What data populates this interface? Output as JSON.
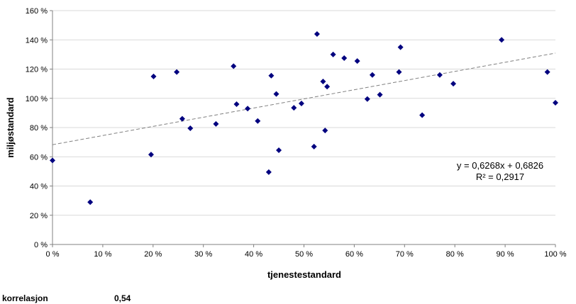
{
  "chart_data": {
    "type": "scatter",
    "xlabel": "tjenestestandard",
    "ylabel": "miljøstandard",
    "xlim": [
      0,
      1.0
    ],
    "ylim": [
      0,
      1.6
    ],
    "x_ticks": [
      "0 %",
      "10 %",
      "20 %",
      "30 %",
      "40 %",
      "50 %",
      "60 %",
      "70 %",
      "80 %",
      "90 %",
      "100 %"
    ],
    "y_ticks": [
      "0 %",
      "20 %",
      "40 %",
      "60 %",
      "80 %",
      "100 %",
      "120 %",
      "140 %",
      "160 %"
    ],
    "grid": "horizontal",
    "marker_color": "#00007f",
    "trendline": {
      "slope": 0.6268,
      "intercept": 0.6826,
      "equation": "y = 0,6268x + 0,6826",
      "r_squared": "R² = 0,2917"
    },
    "points": [
      {
        "x": 0.0,
        "y": 0.575
      },
      {
        "x": 0.075,
        "y": 0.29
      },
      {
        "x": 0.196,
        "y": 0.615
      },
      {
        "x": 0.201,
        "y": 1.15
      },
      {
        "x": 0.247,
        "y": 1.18
      },
      {
        "x": 0.258,
        "y": 0.86
      },
      {
        "x": 0.274,
        "y": 0.795
      },
      {
        "x": 0.325,
        "y": 0.825
      },
      {
        "x": 0.36,
        "y": 1.22
      },
      {
        "x": 0.366,
        "y": 0.96
      },
      {
        "x": 0.388,
        "y": 0.93
      },
      {
        "x": 0.408,
        "y": 0.845
      },
      {
        "x": 0.43,
        "y": 0.495
      },
      {
        "x": 0.435,
        "y": 1.155
      },
      {
        "x": 0.445,
        "y": 1.03
      },
      {
        "x": 0.45,
        "y": 0.645
      },
      {
        "x": 0.48,
        "y": 0.935
      },
      {
        "x": 0.495,
        "y": 0.965
      },
      {
        "x": 0.52,
        "y": 0.67
      },
      {
        "x": 0.526,
        "y": 1.44
      },
      {
        "x": 0.538,
        "y": 1.115
      },
      {
        "x": 0.542,
        "y": 0.78
      },
      {
        "x": 0.546,
        "y": 1.08
      },
      {
        "x": 0.558,
        "y": 1.3
      },
      {
        "x": 0.58,
        "y": 1.275
      },
      {
        "x": 0.606,
        "y": 1.255
      },
      {
        "x": 0.626,
        "y": 0.995
      },
      {
        "x": 0.636,
        "y": 1.16
      },
      {
        "x": 0.651,
        "y": 1.025
      },
      {
        "x": 0.689,
        "y": 1.18
      },
      {
        "x": 0.692,
        "y": 1.35
      },
      {
        "x": 0.735,
        "y": 0.885
      },
      {
        "x": 0.77,
        "y": 1.16
      },
      {
        "x": 0.797,
        "y": 1.1
      },
      {
        "x": 0.893,
        "y": 1.4
      },
      {
        "x": 0.984,
        "y": 1.18
      },
      {
        "x": 1.0,
        "y": 0.97
      }
    ]
  },
  "footer": {
    "label": "korrelasjon",
    "value": "0,54"
  }
}
